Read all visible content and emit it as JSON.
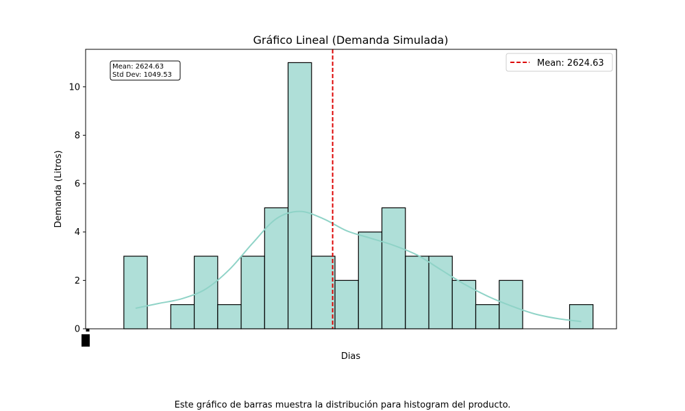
{
  "chart_data": {
    "type": "bar",
    "title": "Gráfico Lineal (Demanda Simulada)",
    "xlabel": "Dias",
    "ylabel": "Demanda (Litros)",
    "bins": [
      {
        "x0": 0,
        "x1": 1,
        "count": 3
      },
      {
        "x0": 1,
        "x1": 2,
        "count": 0
      },
      {
        "x0": 2,
        "x1": 3,
        "count": 1
      },
      {
        "x0": 3,
        "x1": 4,
        "count": 3
      },
      {
        "x0": 4,
        "x1": 5,
        "count": 1
      },
      {
        "x0": 5,
        "x1": 6,
        "count": 3
      },
      {
        "x0": 6,
        "x1": 7,
        "count": 5
      },
      {
        "x0": 7,
        "x1": 8,
        "count": 11
      },
      {
        "x0": 8,
        "x1": 9,
        "count": 3
      },
      {
        "x0": 9,
        "x1": 10,
        "count": 2
      },
      {
        "x0": 10,
        "x1": 11,
        "count": 4
      },
      {
        "x0": 11,
        "x1": 12,
        "count": 5
      },
      {
        "x0": 12,
        "x1": 13,
        "count": 3
      },
      {
        "x0": 13,
        "x1": 14,
        "count": 3
      },
      {
        "x0": 14,
        "x1": 15,
        "count": 2
      },
      {
        "x0": 15,
        "x1": 16,
        "count": 1
      },
      {
        "x0": 16,
        "x1": 17,
        "count": 2
      },
      {
        "x0": 17,
        "x1": 18,
        "count": 0
      },
      {
        "x0": 18,
        "x1": 19,
        "count": 0
      },
      {
        "x0": 19,
        "x1": 20,
        "count": 1
      }
    ],
    "kde": [
      {
        "x": 0.5,
        "y": 0.85
      },
      {
        "x": 1.5,
        "y": 1.05
      },
      {
        "x": 2.5,
        "y": 1.25
      },
      {
        "x": 3.5,
        "y": 1.65
      },
      {
        "x": 4.5,
        "y": 2.45
      },
      {
        "x": 5.5,
        "y": 3.55
      },
      {
        "x": 6.5,
        "y": 4.55
      },
      {
        "x": 7.5,
        "y": 4.85
      },
      {
        "x": 8.5,
        "y": 4.55
      },
      {
        "x": 9.5,
        "y": 4.05
      },
      {
        "x": 10.5,
        "y": 3.75
      },
      {
        "x": 11.5,
        "y": 3.45
      },
      {
        "x": 12.5,
        "y": 3.05
      },
      {
        "x": 13.5,
        "y": 2.45
      },
      {
        "x": 14.5,
        "y": 1.85
      },
      {
        "x": 15.5,
        "y": 1.35
      },
      {
        "x": 16.5,
        "y": 0.95
      },
      {
        "x": 17.5,
        "y": 0.62
      },
      {
        "x": 18.5,
        "y": 0.42
      },
      {
        "x": 19.5,
        "y": 0.3
      }
    ],
    "mean_line": {
      "x": 8.9,
      "label": "Mean: 2624.63",
      "color": "#dd0000"
    },
    "stats_box": {
      "line1": "Mean: 2624.63",
      "line2": "Std Dev: 1049.53"
    },
    "yticks": [
      0,
      2,
      4,
      6,
      8,
      10
    ],
    "ylim": [
      0,
      11.55
    ],
    "xlim": [
      -1.63,
      21.0
    ],
    "legend_position": "top-right",
    "grid": false,
    "bar_fill": "#afdfd8",
    "bar_edge": "#000000",
    "kde_color": "#8fd3c7"
  },
  "caption": "Este gráfico de barras muestra la distribución para histogram del producto."
}
